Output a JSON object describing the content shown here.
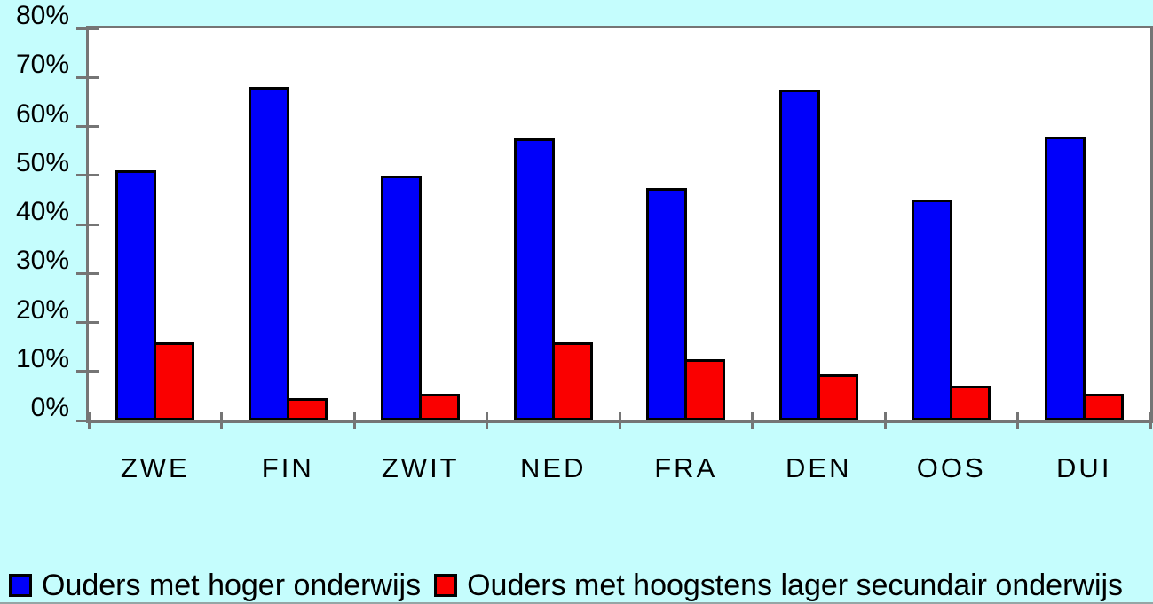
{
  "chart_data": {
    "type": "bar",
    "title": "",
    "categories": [
      "ZWE",
      "FIN",
      "ZWIT",
      "NED",
      "FRA",
      "DEN",
      "OOS",
      "DUI"
    ],
    "series": [
      {
        "name": "Ouders met hoger onderwijs",
        "color": "#0000fa",
        "values": [
          51,
          68,
          50,
          57.5,
          47.5,
          67.5,
          45,
          58
        ]
      },
      {
        "name": "Ouders met hoogstens lager secundair onderwijs",
        "color": "#fa0000",
        "values": [
          16,
          4.5,
          5.5,
          16,
          12.5,
          9.5,
          7,
          5.5
        ]
      }
    ],
    "ylim": [
      0,
      80
    ],
    "ytick_step": 10,
    "ytick_labels": [
      "0%",
      "10%",
      "20%",
      "30%",
      "40%",
      "50%",
      "60%",
      "70%",
      "80%"
    ],
    "xlabel": "",
    "ylabel": "",
    "grid": false,
    "legend_position": "bottom"
  },
  "colors": {
    "background": "#c5fdfd",
    "plot_background": "#ffffff",
    "axis": "#757575",
    "bar_border": "#000000",
    "bottom_edge": "#95a5a5"
  }
}
